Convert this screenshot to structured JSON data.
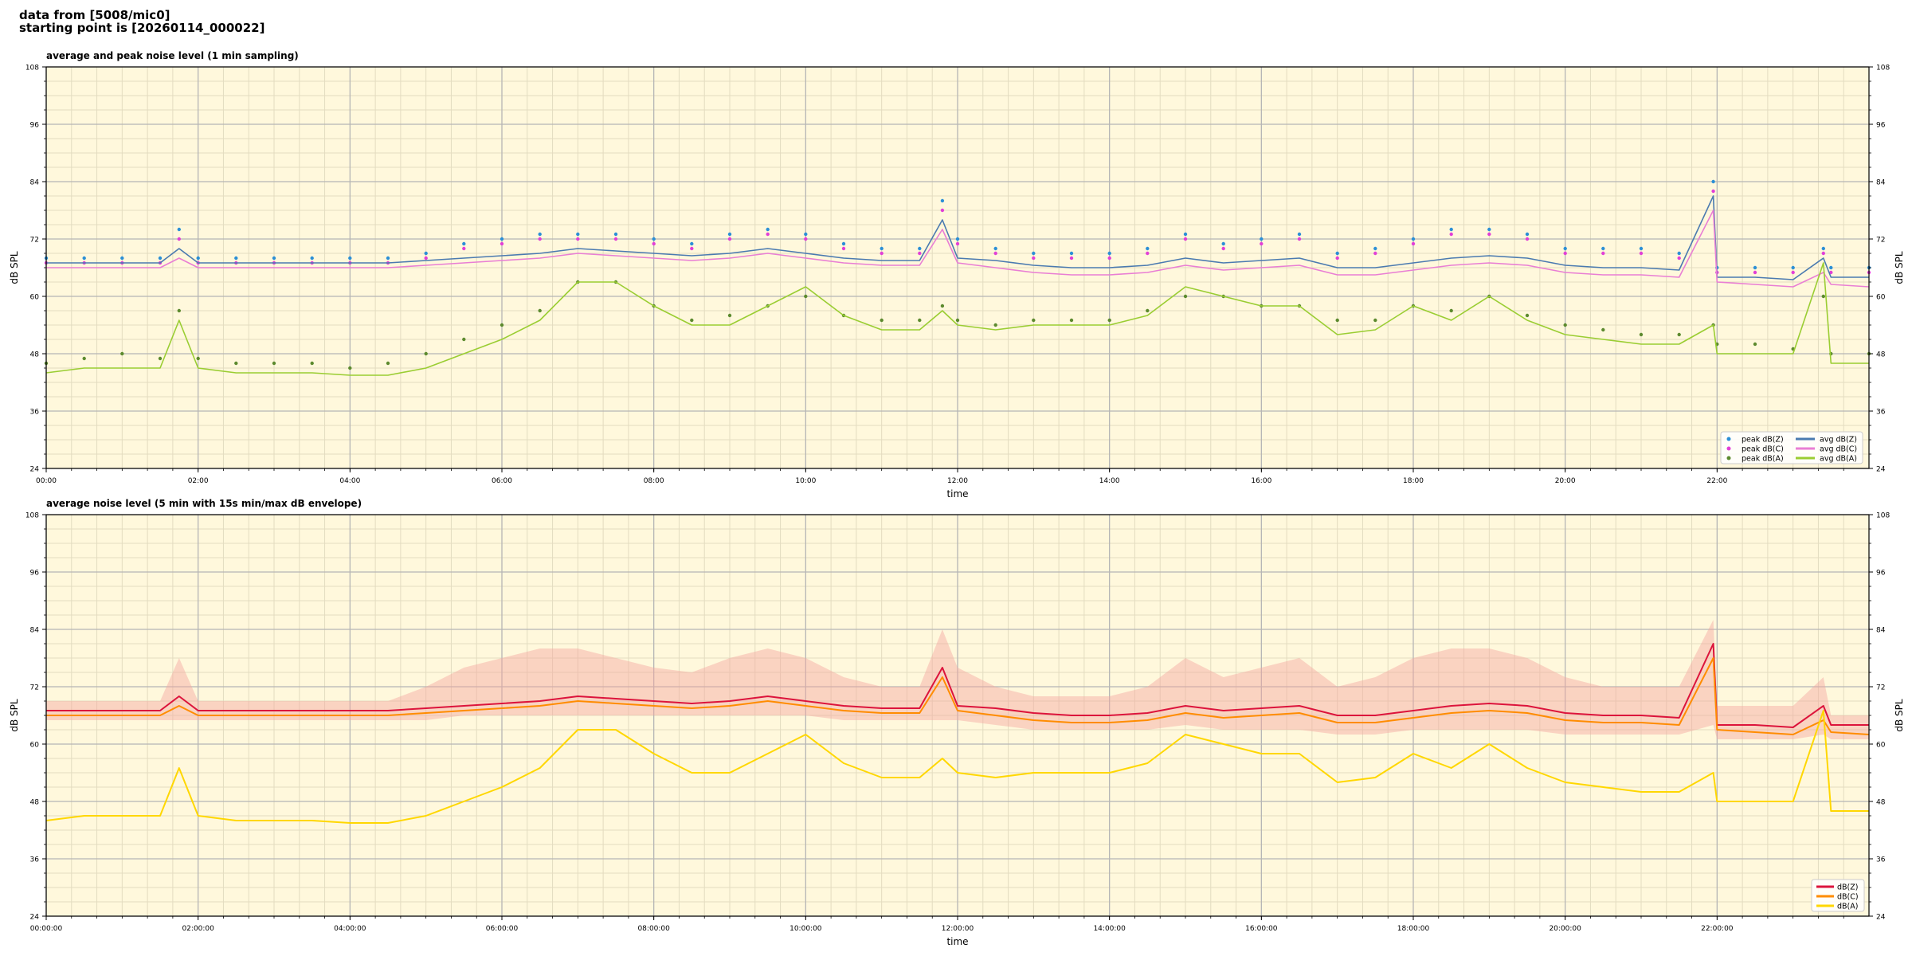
{
  "header": {
    "line1": "data from [5008/mic0]",
    "line2": "starting point is [20260114_000022]"
  },
  "chart_data": [
    {
      "type": "line",
      "title": "average and peak noise level (1 min sampling)",
      "xlabel": "time",
      "ylabel": "dB SPL",
      "ylim": [
        24,
        108
      ],
      "yticks": [
        24,
        36,
        48,
        60,
        72,
        84,
        96,
        108
      ],
      "xlim_hours": [
        0,
        24
      ],
      "xtick_labels": [
        "00:00",
        "02:00",
        "04:00",
        "06:00",
        "08:00",
        "10:00",
        "12:00",
        "14:00",
        "16:00",
        "18:00",
        "20:00",
        "22:00"
      ],
      "grid": true,
      "legend_position": "bottom-right",
      "x_hours": [
        0,
        0.5,
        1,
        1.5,
        1.75,
        2,
        2.5,
        3,
        3.5,
        4,
        4.5,
        5,
        5.5,
        6,
        6.5,
        7,
        7.5,
        8,
        8.5,
        9,
        9.5,
        10,
        10.5,
        11,
        11.5,
        11.8,
        12,
        12.5,
        13,
        13.5,
        14,
        14.5,
        15,
        15.5,
        16,
        16.5,
        17,
        17.5,
        18,
        18.5,
        19,
        19.5,
        20,
        20.5,
        21,
        21.5,
        21.95,
        22,
        22.5,
        23,
        23.4,
        23.5,
        24
      ],
      "series": [
        {
          "name": "avg dB(Z)",
          "kind": "line",
          "color": "#4a7ab0",
          "values": [
            67,
            67,
            67,
            67,
            70,
            67,
            67,
            67,
            67,
            67,
            67,
            67.5,
            68,
            68.5,
            69,
            70,
            69.5,
            69,
            68.5,
            69,
            70,
            69,
            68,
            67.5,
            67.5,
            76,
            68,
            67.5,
            66.5,
            66,
            66,
            66.5,
            68,
            67,
            67.5,
            68,
            66,
            66,
            67,
            68,
            68.5,
            68,
            66.5,
            66,
            66,
            65.5,
            81,
            64,
            64,
            63.5,
            68,
            64,
            64
          ]
        },
        {
          "name": "avg dB(C)",
          "kind": "line",
          "color": "#e97ed4",
          "values": [
            66,
            66,
            66,
            66,
            68,
            66,
            66,
            66,
            66,
            66,
            66,
            66.5,
            67,
            67.5,
            68,
            69,
            68.5,
            68,
            67.5,
            68,
            69,
            68,
            67,
            66.5,
            66.5,
            74,
            67,
            66,
            65,
            64.5,
            64.5,
            65,
            66.5,
            65.5,
            66,
            66.5,
            64.5,
            64.5,
            65.5,
            66.5,
            67,
            66.5,
            65,
            64.5,
            64.5,
            64,
            78,
            63,
            62.5,
            62,
            65,
            62.5,
            62
          ]
        },
        {
          "name": "avg dB(A)",
          "kind": "line",
          "color": "#9acd32",
          "values": [
            44,
            45,
            45,
            45,
            55,
            45,
            44,
            44,
            44,
            43.5,
            43.5,
            45,
            48,
            51,
            55,
            63,
            63,
            58,
            54,
            54,
            58,
            62,
            56,
            53,
            53,
            57,
            54,
            53,
            54,
            54,
            54,
            56,
            62,
            60,
            58,
            58,
            52,
            53,
            58,
            55,
            60,
            55,
            52,
            51,
            50,
            50,
            54,
            48,
            48,
            48,
            67,
            46,
            46
          ]
        },
        {
          "name": "peak dB(Z)",
          "kind": "scatter",
          "color": "#2b8fd6",
          "values": [
            68,
            68,
            68,
            68,
            74,
            68,
            68,
            68,
            68,
            68,
            68,
            69,
            71,
            72,
            73,
            73,
            73,
            72,
            71,
            73,
            74,
            73,
            71,
            70,
            70,
            80,
            72,
            70,
            69,
            69,
            69,
            70,
            73,
            71,
            72,
            73,
            69,
            70,
            72,
            74,
            74,
            73,
            70,
            70,
            70,
            69,
            84,
            66,
            66,
            66,
            70,
            66,
            66
          ]
        },
        {
          "name": "peak dB(C)",
          "kind": "scatter",
          "color": "#e23fd6",
          "values": [
            67,
            67,
            67,
            67,
            72,
            67,
            67,
            67,
            67,
            67,
            67,
            68,
            70,
            71,
            72,
            72,
            72,
            71,
            70,
            72,
            73,
            72,
            70,
            69,
            69,
            78,
            71,
            69,
            68,
            68,
            68,
            69,
            72,
            70,
            71,
            72,
            68,
            69,
            71,
            73,
            73,
            72,
            69,
            69,
            69,
            68,
            82,
            65,
            65,
            65,
            69,
            65,
            65
          ]
        },
        {
          "name": "peak dB(A)",
          "kind": "scatter",
          "color": "#5c8a2e",
          "values": [
            46,
            47,
            48,
            47,
            57,
            47,
            46,
            46,
            46,
            45,
            46,
            48,
            51,
            54,
            57,
            63,
            63,
            58,
            55,
            56,
            58,
            60,
            56,
            55,
            55,
            58,
            55,
            54,
            55,
            55,
            55,
            57,
            60,
            60,
            58,
            58,
            55,
            55,
            58,
            57,
            60,
            56,
            54,
            53,
            52,
            52,
            54,
            50,
            50,
            49,
            60,
            48,
            48
          ]
        }
      ]
    },
    {
      "type": "line",
      "title": "average noise level (5 min with 15s min/max dB envelope)",
      "xlabel": "time",
      "ylabel": "dB SPL",
      "ylim": [
        24,
        108
      ],
      "yticks": [
        24,
        36,
        48,
        60,
        72,
        84,
        96,
        108
      ],
      "xlim_hours": [
        0,
        24
      ],
      "xtick_labels": [
        "00:00:00",
        "02:00:00",
        "04:00:00",
        "06:00:00",
        "08:00:00",
        "10:00:00",
        "12:00:00",
        "14:00:00",
        "16:00:00",
        "18:00:00",
        "20:00:00",
        "22:00:00"
      ],
      "grid": true,
      "legend_position": "bottom-right",
      "x_hours": [
        0,
        0.5,
        1,
        1.5,
        1.75,
        2,
        2.5,
        3,
        3.5,
        4,
        4.5,
        5,
        5.5,
        6,
        6.5,
        7,
        7.5,
        8,
        8.5,
        9,
        9.5,
        10,
        10.5,
        11,
        11.5,
        11.8,
        12,
        12.5,
        13,
        13.5,
        14,
        14.5,
        15,
        15.5,
        16,
        16.5,
        17,
        17.5,
        18,
        18.5,
        19,
        19.5,
        20,
        20.5,
        21,
        21.5,
        21.95,
        22,
        22.5,
        23,
        23.4,
        23.5,
        24
      ],
      "series": [
        {
          "name": "dB(Z)",
          "color": "#dc143c",
          "values": [
            67,
            67,
            67,
            67,
            70,
            67,
            67,
            67,
            67,
            67,
            67,
            67.5,
            68,
            68.5,
            69,
            70,
            69.5,
            69,
            68.5,
            69,
            70,
            69,
            68,
            67.5,
            67.5,
            76,
            68,
            67.5,
            66.5,
            66,
            66,
            66.5,
            68,
            67,
            67.5,
            68,
            66,
            66,
            67,
            68,
            68.5,
            68,
            66.5,
            66,
            66,
            65.5,
            81,
            64,
            64,
            63.5,
            68,
            64,
            64
          ]
        },
        {
          "name": "dB(C)",
          "color": "#ff8c00",
          "values": [
            66,
            66,
            66,
            66,
            68,
            66,
            66,
            66,
            66,
            66,
            66,
            66.5,
            67,
            67.5,
            68,
            69,
            68.5,
            68,
            67.5,
            68,
            69,
            68,
            67,
            66.5,
            66.5,
            74,
            67,
            66,
            65,
            64.5,
            64.5,
            65,
            66.5,
            65.5,
            66,
            66.5,
            64.5,
            64.5,
            65.5,
            66.5,
            67,
            66.5,
            65,
            64.5,
            64.5,
            64,
            78,
            63,
            62.5,
            62,
            65,
            62.5,
            62
          ]
        },
        {
          "name": "dB(A)",
          "color": "#ffd700",
          "values": [
            44,
            45,
            45,
            45,
            55,
            45,
            44,
            44,
            44,
            43.5,
            43.5,
            45,
            48,
            51,
            55,
            63,
            63,
            58,
            54,
            54,
            58,
            62,
            56,
            53,
            53,
            57,
            54,
            53,
            54,
            54,
            54,
            56,
            62,
            60,
            58,
            58,
            52,
            53,
            58,
            55,
            60,
            55,
            52,
            51,
            50,
            50,
            54,
            48,
            48,
            48,
            67,
            46,
            46
          ]
        }
      ],
      "envelope": {
        "color": "#f4a6a0",
        "max_values": [
          69,
          69,
          69,
          69,
          78,
          69,
          69,
          69,
          69,
          69,
          69,
          72,
          76,
          78,
          80,
          80,
          78,
          76,
          75,
          78,
          80,
          78,
          74,
          72,
          72,
          84,
          76,
          72,
          70,
          70,
          70,
          72,
          78,
          74,
          76,
          78,
          72,
          74,
          78,
          80,
          80,
          78,
          74,
          72,
          72,
          72,
          86,
          68,
          68,
          68,
          74,
          66,
          66
        ],
        "min_values": [
          65,
          65,
          65,
          65,
          65,
          65,
          65,
          65,
          65,
          65,
          65,
          65,
          66,
          66,
          66,
          66,
          66,
          66,
          66,
          66,
          66,
          66,
          65,
          65,
          65,
          65,
          65,
          64,
          63,
          63,
          63,
          63,
          64,
          63,
          63,
          63,
          62,
          62,
          63,
          63,
          63,
          63,
          62,
          62,
          62,
          62,
          64,
          61,
          61,
          61,
          62,
          61,
          61
        ]
      }
    }
  ]
}
